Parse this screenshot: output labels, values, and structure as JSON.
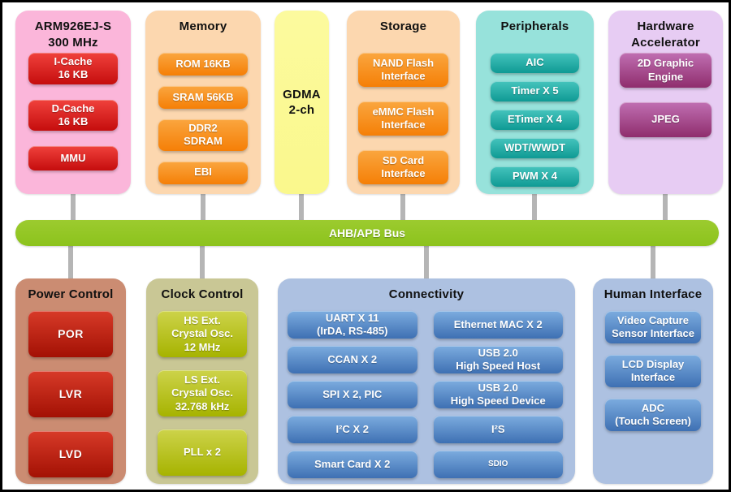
{
  "bus": {
    "label": "AHB/APB Bus"
  },
  "panels": [
    {
      "id": "arm-cpu",
      "title": "ARM926EJ-S\n300 MHz",
      "blocks": [
        {
          "label": "I-Cache\n16 KB"
        },
        {
          "label": "D-Cache\n16 KB"
        },
        {
          "label": "MMU"
        }
      ]
    },
    {
      "id": "memory",
      "title": "Memory",
      "blocks": [
        {
          "label": "ROM 16KB"
        },
        {
          "label": "SRAM 56KB"
        },
        {
          "label": "DDR2\nSDRAM"
        },
        {
          "label": "EBI"
        }
      ]
    },
    {
      "id": "gdma",
      "title": "GDMA\n2-ch",
      "blocks": []
    },
    {
      "id": "storage",
      "title": "Storage",
      "blocks": [
        {
          "label": "NAND Flash\nInterface"
        },
        {
          "label": "eMMC Flash\nInterface"
        },
        {
          "label": "SD Card\nInterface"
        }
      ]
    },
    {
      "id": "peripherals",
      "title": "Peripherals",
      "blocks": [
        {
          "label": "AIC"
        },
        {
          "label": "Timer X 5"
        },
        {
          "label": "ETimer X 4"
        },
        {
          "label": "WDT/WWDT"
        },
        {
          "label": "PWM X 4"
        }
      ]
    },
    {
      "id": "hw-accelerator",
      "title": "Hardware\nAccelerator",
      "blocks": [
        {
          "label": "2D Graphic\nEngine"
        },
        {
          "label": "JPEG"
        }
      ]
    },
    {
      "id": "power-control",
      "title": "Power Control",
      "blocks": [
        {
          "label": "POR"
        },
        {
          "label": "LVR"
        },
        {
          "label": "LVD"
        }
      ]
    },
    {
      "id": "clock-control",
      "title": "Clock Control",
      "blocks": [
        {
          "label": "HS Ext.\nCrystal Osc.\n12 MHz"
        },
        {
          "label": "LS Ext.\nCrystal Osc.\n32.768 kHz"
        },
        {
          "label": "PLL x 2"
        }
      ]
    },
    {
      "id": "connectivity",
      "title": "Connectivity",
      "blocks": [
        {
          "label": "UART X 11\n(IrDA, RS-485)"
        },
        {
          "label": "CCAN X 2"
        },
        {
          "label": "SPI X 2, PIC"
        },
        {
          "label": "I²C X 2"
        },
        {
          "label": "Smart Card X 2"
        },
        {
          "label": "Ethernet MAC X 2"
        },
        {
          "label": "USB 2.0\nHigh Speed Host"
        },
        {
          "label": "USB 2.0\nHigh Speed Device"
        },
        {
          "label": "I²S"
        },
        {
          "label": "SDIO",
          "small": true
        }
      ]
    },
    {
      "id": "human-interface",
      "title": "Human Interface",
      "blocks": [
        {
          "label": "Video Capture\nSensor Interface"
        },
        {
          "label": "LCD Display\nInterface"
        },
        {
          "label": "ADC\n(Touch Screen)"
        }
      ]
    }
  ],
  "colors": {
    "bus": "#8cc31c",
    "connector": "#b5b5b5",
    "pink_panel": "#fbb6da",
    "red_block_top": "#f0413c",
    "red_block_bottom": "#c50d0d",
    "peach_panel": "#fcd7af",
    "orange_block_top": "#faa63f",
    "orange_block_bottom": "#f57f06",
    "yellow_panel": "#faf88c",
    "teal_panel": "#97e2db",
    "teal_block_top": "#45c4bd",
    "teal_block_bottom": "#0f9a94",
    "lavender_panel": "#e7ccf3",
    "purple_block_top": "#c06fb2",
    "purple_block_bottom": "#8f2d6d",
    "brown_panel": "#cb8c72",
    "darkred_block_top": "#d73a28",
    "darkred_block_bottom": "#a31104",
    "olive_panel": "#c9c795",
    "lime_block_top": "#cdd34a",
    "lime_block_bottom": "#a6b300",
    "steel_panel": "#adc1e1",
    "blue_block_top": "#7cacdf",
    "blue_block_bottom": "#3e70b3"
  }
}
